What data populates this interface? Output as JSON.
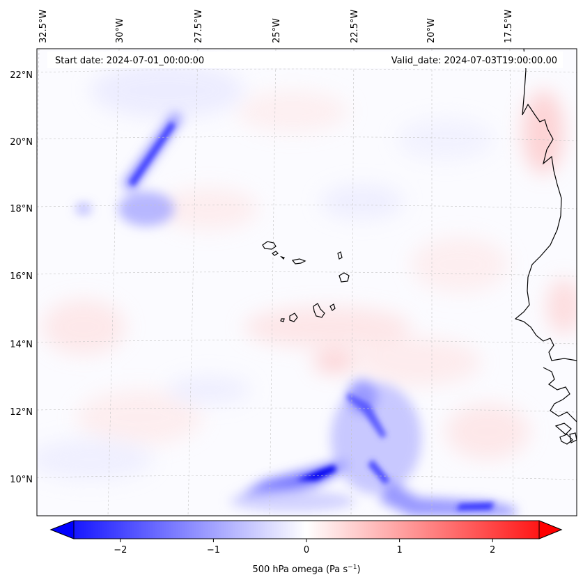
{
  "header": {
    "start_label": "Start date: 2024-07-01_00:00:00",
    "valid_label": "Valid_date: 2024-07-03T19:00:00.00"
  },
  "map": {
    "lon_labels": [
      "32.5°W",
      "30°W",
      "27.5°W",
      "25°W",
      "22.5°W",
      "20°W",
      "17.5°W"
    ],
    "lat_labels": [
      "22°N",
      "20°N",
      "18°N",
      "16°N",
      "14°N",
      "12°N",
      "10°N"
    ],
    "features": {
      "islands": "Cape Verde islands (outlined)",
      "coast": "West African coastline (Senegal, Gambia, Guinea-Bissau)"
    }
  },
  "colorbar": {
    "ticks": [
      "−2",
      "−1",
      "0",
      "1",
      "2"
    ],
    "tick_values": [
      -2,
      -1,
      0,
      1,
      2
    ],
    "range": [
      -2.5,
      2.5
    ],
    "label_main": "500 hPa omega (Pa s",
    "label_sup": "−1",
    "label_close": ")",
    "cmap_low": "#0000ff",
    "cmap_mid": "#ffffff",
    "cmap_high": "#ff0000"
  }
}
